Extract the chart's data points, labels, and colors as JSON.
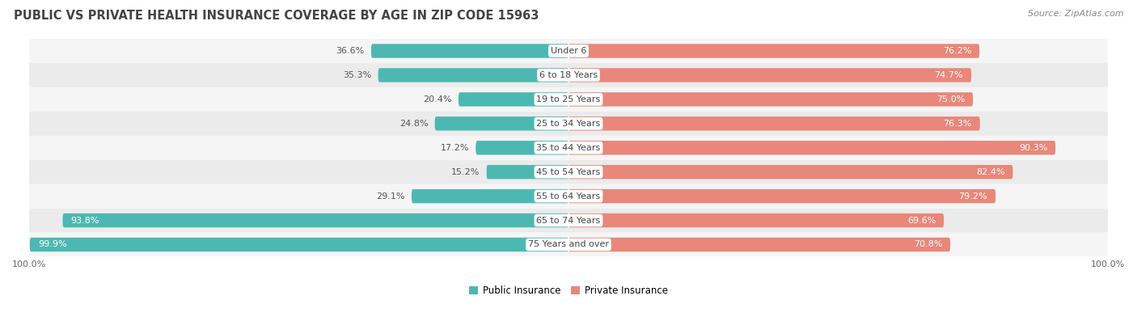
{
  "title": "PUBLIC VS PRIVATE HEALTH INSURANCE COVERAGE BY AGE IN ZIP CODE 15963",
  "source": "Source: ZipAtlas.com",
  "categories": [
    "Under 6",
    "6 to 18 Years",
    "19 to 25 Years",
    "25 to 34 Years",
    "35 to 44 Years",
    "45 to 54 Years",
    "55 to 64 Years",
    "65 to 74 Years",
    "75 Years and over"
  ],
  "public_values": [
    36.6,
    35.3,
    20.4,
    24.8,
    17.2,
    15.2,
    29.1,
    93.8,
    99.9
  ],
  "private_values": [
    76.2,
    74.7,
    75.0,
    76.3,
    90.3,
    82.4,
    79.2,
    69.6,
    70.8
  ],
  "public_color": "#4db8b2",
  "private_color": "#e8877a",
  "row_bg_even": "#f5f5f5",
  "row_bg_odd": "#ebebeb",
  "max_value": 100.0,
  "title_fontsize": 10.5,
  "label_fontsize": 8,
  "value_fontsize": 8,
  "legend_fontsize": 8.5,
  "source_fontsize": 8,
  "background_color": "#ffffff",
  "bar_height": 0.58,
  "axis_label_color": "#666666"
}
